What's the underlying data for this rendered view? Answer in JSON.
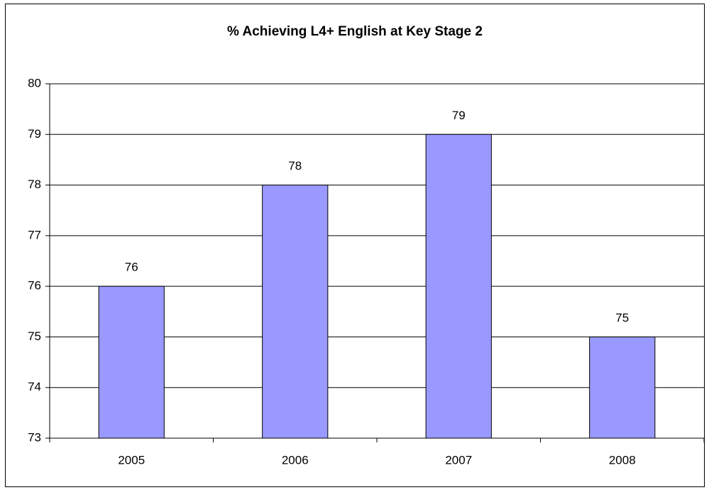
{
  "chart_data": {
    "type": "bar",
    "title": "% Achieving L4+ English at Key Stage 2",
    "categories": [
      "2005",
      "2006",
      "2007",
      "2008"
    ],
    "values": [
      76,
      78,
      79,
      75
    ],
    "color": "#9999ff",
    "ylim": [
      73,
      80
    ],
    "yticks": [
      73,
      74,
      75,
      76,
      77,
      78,
      79,
      80
    ],
    "grid": true
  }
}
